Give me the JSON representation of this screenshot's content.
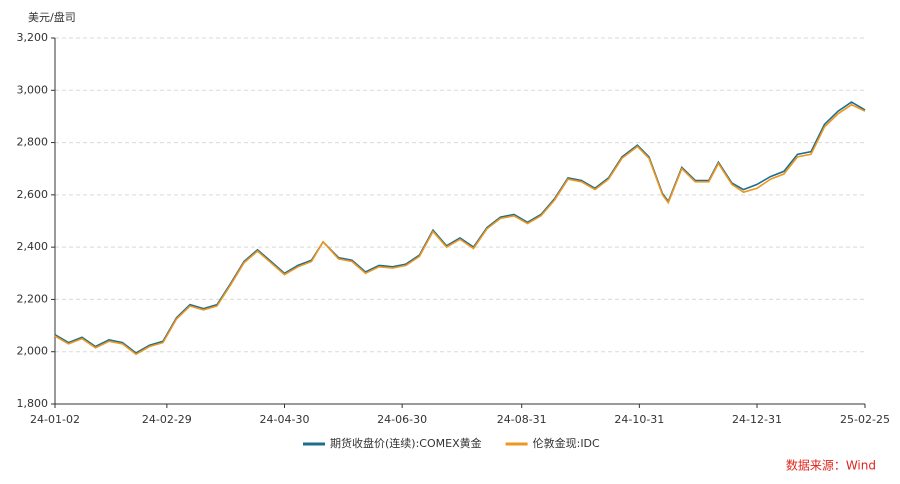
{
  "chart_data": {
    "type": "line",
    "y_label": "美元/盘司",
    "source": "数据来源：Wind",
    "x": [
      "24-01-02",
      "24-01-09",
      "24-01-16",
      "24-01-23",
      "24-01-30",
      "24-02-06",
      "24-02-13",
      "24-02-20",
      "24-02-27",
      "24-03-05",
      "24-03-12",
      "24-03-19",
      "24-03-26",
      "24-04-02",
      "24-04-09",
      "24-04-16",
      "24-04-23",
      "24-04-30",
      "24-05-07",
      "24-05-14",
      "24-05-20",
      "24-05-28",
      "24-06-04",
      "24-06-11",
      "24-06-18",
      "24-06-25",
      "24-07-02",
      "24-07-09",
      "24-07-16",
      "24-07-23",
      "24-07-30",
      "24-08-06",
      "24-08-13",
      "24-08-20",
      "24-08-27",
      "24-09-03",
      "24-09-10",
      "24-09-17",
      "24-09-24",
      "24-10-01",
      "24-10-08",
      "24-10-15",
      "24-10-22",
      "24-10-30",
      "24-11-05",
      "24-11-12",
      "24-11-15",
      "24-11-22",
      "24-11-29",
      "24-12-06",
      "24-12-11",
      "24-12-18",
      "24-12-24",
      "24-12-31",
      "25-01-07",
      "25-01-14",
      "25-01-21",
      "25-01-28",
      "25-02-04",
      "25-02-11",
      "25-02-18",
      "25-02-25"
    ],
    "series": [
      {
        "name": "期货收盘价(连续):COMEX黄金",
        "color": "#1c6f8f",
        "values": [
          2065,
          2035,
          2055,
          2020,
          2045,
          2035,
          1995,
          2025,
          2040,
          2130,
          2180,
          2165,
          2180,
          2260,
          2345,
          2390,
          2345,
          2300,
          2330,
          2350,
          2420,
          2360,
          2350,
          2305,
          2330,
          2325,
          2335,
          2370,
          2465,
          2405,
          2435,
          2400,
          2475,
          2515,
          2525,
          2495,
          2525,
          2585,
          2665,
          2655,
          2625,
          2665,
          2745,
          2790,
          2745,
          2605,
          2575,
          2705,
          2655,
          2655,
          2725,
          2645,
          2620,
          2640,
          2670,
          2690,
          2755,
          2765,
          2870,
          2920,
          2955,
          2925
        ]
      },
      {
        "name": "伦敦金现:IDC",
        "color": "#f0961e",
        "values": [
          2060,
          2030,
          2050,
          2015,
          2040,
          2030,
          1990,
          2020,
          2035,
          2125,
          2175,
          2160,
          2175,
          2255,
          2340,
          2385,
          2340,
          2295,
          2325,
          2345,
          2420,
          2355,
          2345,
          2300,
          2325,
          2320,
          2330,
          2365,
          2460,
          2400,
          2430,
          2395,
          2470,
          2510,
          2520,
          2490,
          2520,
          2580,
          2660,
          2650,
          2620,
          2660,
          2740,
          2785,
          2740,
          2600,
          2570,
          2700,
          2650,
          2650,
          2720,
          2640,
          2610,
          2625,
          2660,
          2680,
          2745,
          2755,
          2860,
          2910,
          2945,
          2920
        ]
      }
    ],
    "xlim": [
      "24-01-02",
      "25-02-25"
    ],
    "xticks": [
      "24-01-02",
      "24-02-29",
      "24-04-30",
      "24-06-30",
      "24-08-31",
      "24-10-31",
      "24-12-31",
      "25-02-25"
    ],
    "ylim": [
      1800,
      3200
    ],
    "yticks": [
      {
        "value": 1800,
        "label": "1,800"
      },
      {
        "value": 2000,
        "label": "2,000"
      },
      {
        "value": 2200,
        "label": "2,200"
      },
      {
        "value": 2400,
        "label": "2,400"
      },
      {
        "value": 2600,
        "label": "2,600"
      },
      {
        "value": 2800,
        "label": "2,800"
      },
      {
        "value": 3000,
        "label": "3,000"
      },
      {
        "value": 3200,
        "label": "3,200"
      }
    ],
    "grid": true
  }
}
